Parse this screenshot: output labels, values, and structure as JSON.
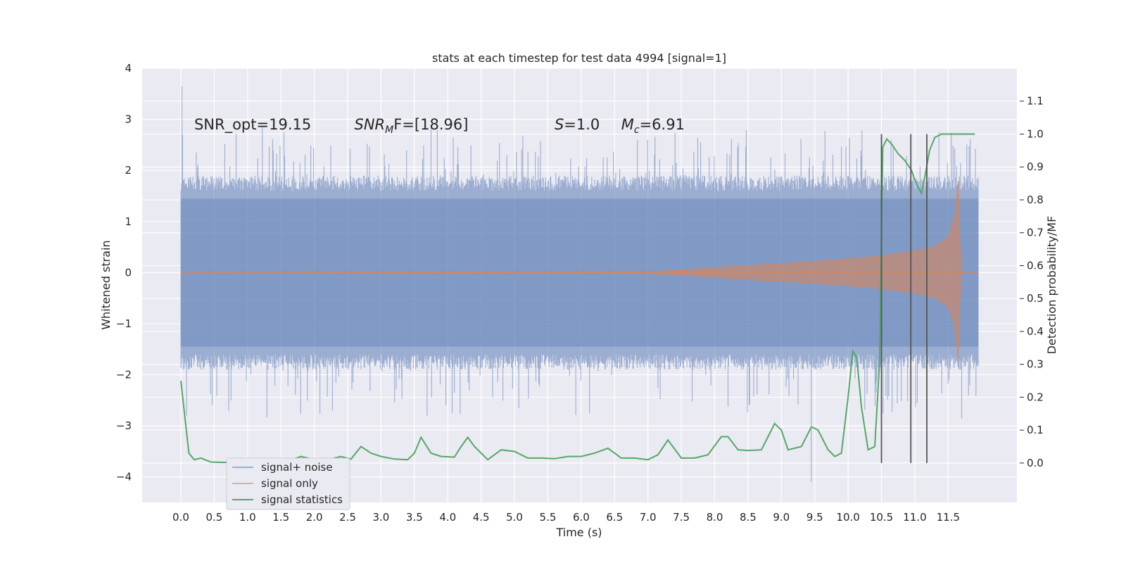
{
  "chart_data": {
    "type": "line",
    "title": "stats at each timestep for test data 4994 [signal=1]",
    "xlabel": "Time (s)",
    "ylabel": "Whitened strain",
    "ylabel_right": "Detection probability/MF",
    "xlim": [
      -0.58,
      12.53
    ],
    "ylim": [
      -4.5,
      4.0
    ],
    "ylim_right": [
      -0.12,
      1.2
    ],
    "x_ticks": [
      0.0,
      0.5,
      1.0,
      1.5,
      2.0,
      2.5,
      3.0,
      3.5,
      4.0,
      4.5,
      5.0,
      5.5,
      6.0,
      6.5,
      7.0,
      7.5,
      8.0,
      8.5,
      9.0,
      9.5,
      10.0,
      10.5,
      11.0,
      11.5
    ],
    "x_tick_labels": [
      "0.0",
      "0.5",
      "1.0",
      "1.5",
      "2.0",
      "2.5",
      "3.0",
      "3.5",
      "4.0",
      "4.5",
      "5.0",
      "5.5",
      "6.0",
      "6.5",
      "7.0",
      "7.5",
      "8.0",
      "8.5",
      "9.0",
      "9.5",
      "10.0",
      "10.5",
      "11.0",
      "11.5"
    ],
    "y_ticks": [
      -4,
      -3,
      -2,
      -1,
      0,
      1,
      2,
      3,
      4
    ],
    "y_tick_labels": [
      "−4",
      "−3",
      "−2",
      "−1",
      "0",
      "1",
      "2",
      "3",
      "4"
    ],
    "y2_ticks": [
      0.0,
      0.1,
      0.2,
      0.3,
      0.4,
      0.5,
      0.6,
      0.7,
      0.8,
      0.9,
      1.0,
      1.1
    ],
    "y2_tick_labels": [
      "0.0",
      "0.1",
      "0.2",
      "0.3",
      "0.4",
      "0.5",
      "0.6",
      "0.7",
      "0.8",
      "0.9",
      "1.0",
      "1.1"
    ],
    "grid": true,
    "legend_position": "lower-left",
    "annotations": [
      {
        "text": "SNR_opt=19.15",
        "x": 0.2,
        "y": 2.9
      },
      {
        "text": "SNR",
        "sub": "M",
        "tail": "F=[18.96]",
        "italic": true,
        "x": 2.6,
        "y": 2.9
      },
      {
        "text": "S",
        "tail": "=1.0",
        "italic": true,
        "x": 5.6,
        "y": 2.9
      },
      {
        "text": "M",
        "sub": "c",
        "tail": "=6.91",
        "italic": true,
        "x": 6.6,
        "y": 2.9
      }
    ],
    "vlines": [
      {
        "x": 10.5,
        "y2_range": [
          0.0,
          1.0
        ]
      },
      {
        "x": 10.94,
        "y2_range": [
          0.0,
          1.0
        ]
      },
      {
        "x": 11.18,
        "y2_range": [
          0.0,
          1.0
        ]
      }
    ],
    "series": [
      {
        "name": "signal+ noise",
        "color": "#4c72b0",
        "kind": "noise-band",
        "x_range": [
          0.0,
          11.95
        ],
        "envelope_upper": [
          1.6,
          1.6
        ],
        "envelope_lower": [
          -1.6,
          -1.6
        ],
        "peak_max": 3.65,
        "peak_min": -4.1
      },
      {
        "name": "signal only",
        "color": "#dd8452",
        "kind": "chirp-envelope",
        "x": [
          0.0,
          7.0,
          7.5,
          8.0,
          8.5,
          9.0,
          9.5,
          10.0,
          10.5,
          11.0,
          11.3,
          11.5,
          11.6,
          11.65,
          11.68,
          11.7,
          11.95
        ],
        "amplitude": [
          0.0,
          0.02,
          0.05,
          0.1,
          0.14,
          0.18,
          0.22,
          0.27,
          0.33,
          0.42,
          0.52,
          0.7,
          1.1,
          1.8,
          0.5,
          0.0,
          0.0
        ]
      },
      {
        "name": "signal statistics",
        "color": "#55a868",
        "axis": "right",
        "x": [
          0.0,
          0.12,
          0.2,
          0.3,
          0.45,
          0.6,
          0.8,
          1.0,
          1.3,
          1.6,
          1.8,
          2.0,
          2.2,
          2.4,
          2.55,
          2.7,
          2.85,
          3.0,
          3.2,
          3.4,
          3.5,
          3.6,
          3.75,
          3.9,
          4.1,
          4.2,
          4.3,
          4.4,
          4.6,
          4.8,
          5.0,
          5.2,
          5.4,
          5.6,
          5.8,
          6.0,
          6.2,
          6.4,
          6.6,
          6.8,
          7.0,
          7.15,
          7.3,
          7.5,
          7.7,
          7.9,
          8.1,
          8.2,
          8.35,
          8.5,
          8.7,
          8.9,
          9.0,
          9.1,
          9.3,
          9.45,
          9.55,
          9.7,
          9.8,
          9.9,
          10.0,
          10.07,
          10.13,
          10.2,
          10.3,
          10.4,
          10.47,
          10.52,
          10.58,
          10.65,
          10.75,
          10.85,
          10.95,
          11.02,
          11.1,
          11.15,
          11.22,
          11.3,
          11.4,
          11.6,
          11.8,
          11.9
        ],
        "y": [
          0.25,
          0.03,
          0.01,
          0.015,
          0.003,
          0.002,
          0.002,
          0.002,
          0.003,
          0.005,
          0.02,
          0.01,
          0.01,
          0.02,
          0.012,
          0.05,
          0.03,
          0.02,
          0.012,
          0.01,
          0.03,
          0.078,
          0.03,
          0.02,
          0.018,
          0.05,
          0.078,
          0.05,
          0.01,
          0.04,
          0.035,
          0.015,
          0.015,
          0.013,
          0.02,
          0.02,
          0.03,
          0.045,
          0.015,
          0.015,
          0.01,
          0.025,
          0.07,
          0.015,
          0.015,
          0.025,
          0.08,
          0.08,
          0.04,
          0.038,
          0.04,
          0.12,
          0.1,
          0.04,
          0.05,
          0.11,
          0.1,
          0.04,
          0.02,
          0.03,
          0.2,
          0.34,
          0.32,
          0.17,
          0.04,
          0.05,
          0.3,
          0.96,
          0.985,
          0.97,
          0.94,
          0.92,
          0.89,
          0.85,
          0.82,
          0.87,
          0.95,
          0.99,
          1.0,
          1.0,
          1.0,
          1.0
        ]
      }
    ]
  }
}
